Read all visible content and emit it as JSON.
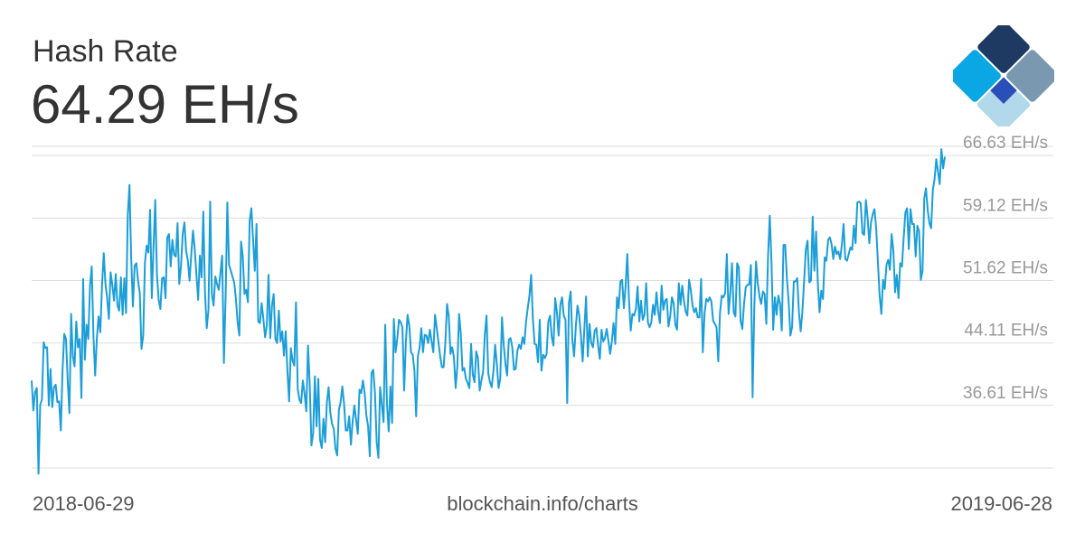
{
  "header": {
    "title": "Hash Rate",
    "current_value": "64.29 EH/s"
  },
  "footer": {
    "start_date": "2018-06-29",
    "source": "blockchain.info/charts",
    "end_date": "2019-06-28"
  },
  "colors": {
    "line": "#1b9ed9",
    "grid": "#dddddd",
    "tick_label": "#999999",
    "logo_navy": "#1e3a62",
    "logo_slate": "#7a99b0",
    "logo_blue": "#2a4fb8",
    "logo_cyan": "#0aa7e4",
    "logo_light": "#b2d8ec"
  },
  "chart_data": {
    "type": "line",
    "title": "Hash Rate",
    "xlabel": "",
    "ylabel": "",
    "x_range": [
      "2018-06-29",
      "2019-06-28"
    ],
    "ylim": [
      29.1,
      68.5
    ],
    "yticks": [
      36.61,
      44.11,
      51.62,
      59.12,
      66.63
    ],
    "ytick_labels": [
      "36.61 EH/s",
      "44.11 EH/s",
      "51.62 EH/s",
      "59.12 EH/s",
      "66.63 EH/s"
    ],
    "grid": true,
    "legend": "none",
    "series": [
      {
        "values": [
          39.6,
          36.0,
          38.2,
          38.7,
          28.4,
          36.7,
          37.3,
          44.2,
          43.5,
          43.6,
          36.6,
          41.0,
          36.4,
          38.8,
          39.1,
          37.0,
          37.1,
          33.6,
          40.8,
          45.2,
          44.6,
          39.6,
          35.7,
          47.6,
          42.5,
          41.3,
          46.7,
          43.6,
          44.6,
          37.5,
          51.8,
          42.1,
          46.3,
          44.6,
          51.0,
          53.3,
          45.0,
          40.2,
          44.7,
          47.3,
          45.4,
          51.0,
          54.9,
          51.2,
          49.5,
          47.0,
          52.6,
          51.1,
          49.2,
          52.4,
          48.6,
          48.0,
          52.0,
          47.5,
          51.9,
          47.7,
          59.5,
          63.1,
          54.3,
          48.5,
          53.4,
          53.7,
          51.6,
          50.1,
          43.4,
          45.0,
          53.8,
          55.8,
          55.0,
          60.1,
          49.5,
          55.6,
          61.3,
          52.3,
          49.3,
          48.2,
          51.9,
          52.0,
          49.5,
          56.8,
          57.2,
          53.3,
          56.5,
          54.7,
          54.5,
          58.5,
          51.2,
          53.3,
          57.2,
          58.6,
          55.2,
          54.0,
          51.6,
          54.8,
          57.6,
          55.4,
          52.3,
          49.3,
          54.6,
          52.0,
          59.9,
          50.1,
          45.9,
          48.1,
          61.1,
          50.0,
          48.6,
          52.1,
          51.2,
          50.5,
          52.6,
          54.6,
          41.7,
          49.6,
          61.0,
          53.5,
          52.8,
          52.1,
          51.4,
          49.4,
          46.6,
          45.0,
          56.3,
          54.5,
          50.0,
          50.5,
          49.0,
          58.8,
          60.3,
          56.5,
          52.8,
          58.4,
          46.7,
          46.5,
          48.9,
          47.0,
          44.8,
          46.2,
          52.3,
          44.7,
          48.6,
          50.0,
          44.6,
          44.1,
          48.0,
          44.3,
          45.5,
          42.6,
          45.5,
          40.8,
          37.1,
          43.5,
          42.0,
          41.4,
          49.0,
          38.6,
          37.3,
          36.9,
          39.6,
          38.0,
          35.9,
          43.8,
          39.2,
          31.8,
          33.3,
          40.1,
          34.1,
          39.8,
          32.5,
          31.5,
          35.0,
          32.2,
          37.0,
          38.8,
          35.7,
          34.4,
          33.8,
          31.4,
          30.6,
          36.1,
          37.0,
          38.9,
          36.8,
          33.6,
          33.6,
          35.3,
          31.9,
          34.7,
          36.6,
          34.9,
          33.2,
          38.5,
          38.1,
          39.6,
          38.1,
          35.4,
          34.1,
          30.5,
          40.5,
          40.9,
          38.1,
          32.2,
          30.3,
          38.8,
          36.7,
          34.6,
          46.3,
          36.8,
          33.5,
          38.9,
          34.5,
          47.0,
          43.0,
          44.6,
          46.9,
          46.6,
          46.0,
          38.4,
          44.2,
          47.5,
          46.2,
          43.0,
          42.7,
          40.8,
          35.3,
          42.5,
          43.6,
          45.9,
          43.0,
          45.1,
          45.0,
          44.1,
          45.7,
          44.3,
          43.0,
          47.5,
          45.9,
          44.2,
          42.5,
          41.2,
          41.2,
          44.1,
          48.8,
          47.3,
          42.8,
          43.6,
          42.4,
          38.7,
          41.3,
          47.6,
          45.3,
          40.8,
          41.1,
          39.8,
          39.3,
          38.7,
          44.0,
          40.3,
          39.4,
          43.1,
          42.3,
          38.4,
          39.6,
          40.6,
          45.1,
          47.4,
          40.5,
          39.4,
          38.8,
          40.7,
          43.9,
          41.6,
          38.7,
          39.8,
          47.2,
          43.9,
          41.6,
          40.2,
          44.5,
          44.7,
          43.6,
          40.9,
          41.0,
          43.2,
          43.9,
          43.4,
          44.8,
          44.0,
          46.6,
          48.3,
          49.8,
          52.3,
          47.0,
          44.0,
          43.9,
          41.8,
          46.9,
          40.8,
          42.7,
          42.3,
          42.8,
          46.7,
          47.4,
          44.8,
          43.8,
          49.5,
          47.8,
          45.0,
          48.7,
          49.6,
          47.4,
          46.9,
          36.9,
          48.9,
          50.3,
          44.5,
          42.5,
          46.0,
          48.6,
          47.4,
          44.9,
          41.9,
          45.9,
          49.7,
          42.5,
          46.4,
          44.1,
          43.6,
          45.6,
          45.9,
          43.8,
          42.2,
          45.7,
          44.3,
          44.7,
          45.8,
          44.4,
          42.8,
          44.3,
          46.5,
          44.0,
          49.6,
          48.3,
          51.5,
          51.7,
          48.3,
          50.9,
          54.8,
          49.2,
          45.6,
          47.6,
          47.4,
          48.2,
          50.9,
          46.7,
          49.2,
          46.9,
          47.5,
          51.3,
          46.6,
          46.0,
          46.6,
          48.7,
          47.5,
          50.2,
          47.9,
          46.5,
          51.0,
          48.1,
          49.2,
          49.4,
          46.1,
          47.3,
          49.6,
          48.9,
          46.3,
          45.7,
          51.3,
          48.7,
          51.0,
          49.2,
          47.9,
          47.4,
          51.7,
          50.5,
          48.6,
          47.8,
          48.3,
          47.2,
          47.2,
          51.8,
          43.0,
          47.6,
          49.4,
          49.1,
          49.6,
          49.1,
          46.8,
          46.4,
          46.0,
          41.9,
          47.7,
          49.8,
          49.6,
          50.1,
          54.8,
          47.6,
          50.1,
          53.7,
          47.8,
          47.3,
          53.7,
          53.2,
          46.8,
          45.8,
          48.8,
          50.8,
          51.1,
          51.1,
          53.5,
          37.6,
          48.5,
          53.9,
          51.3,
          49.7,
          48.8,
          50.3,
          50.0,
          46.4,
          54.5,
          59.4,
          53.9,
          45.7,
          49.6,
          47.5,
          49.8,
          48.8,
          45.6,
          55.9,
          55.9,
          51.8,
          49.1,
          45.0,
          46.0,
          51.5,
          51.5,
          51.9,
          47.8,
          45.5,
          47.9,
          51.5,
          55.3,
          56.4,
          51.4,
          51.6,
          59.3,
          52.8,
          57.5,
          51.4,
          47.8,
          50.4,
          49.4,
          54.4,
          54.0,
          56.5,
          56.8,
          56.0,
          54.2,
          55.7,
          54.8,
          55.1,
          54.2,
          55.9,
          58.4,
          54.2,
          54.0,
          54.8,
          55.6,
          55.3,
          58.2,
          56.1,
          61.0,
          61.1,
          60.9,
          57.3,
          57.1,
          61.3,
          59.2,
          56.1,
          58.6,
          59.6,
          60.2,
          57.9,
          53.8,
          49.8,
          47.6,
          51.7,
          50.6,
          53.5,
          54.1,
          52.9,
          57.2,
          55.2,
          50.2,
          52.3,
          49.5,
          53.7,
          53.3,
          56.7,
          59.8,
          60.3,
          55.4,
          60.2,
          58.4,
          58.4,
          54.5,
          58.2,
          57.5,
          51.7,
          52.8,
          61.5,
          62.7,
          60.1,
          58.5,
          57.9,
          62.5,
          63.8,
          66.2,
          64.7,
          63.2,
          67.4,
          65.1,
          66.5
        ]
      }
    ]
  }
}
